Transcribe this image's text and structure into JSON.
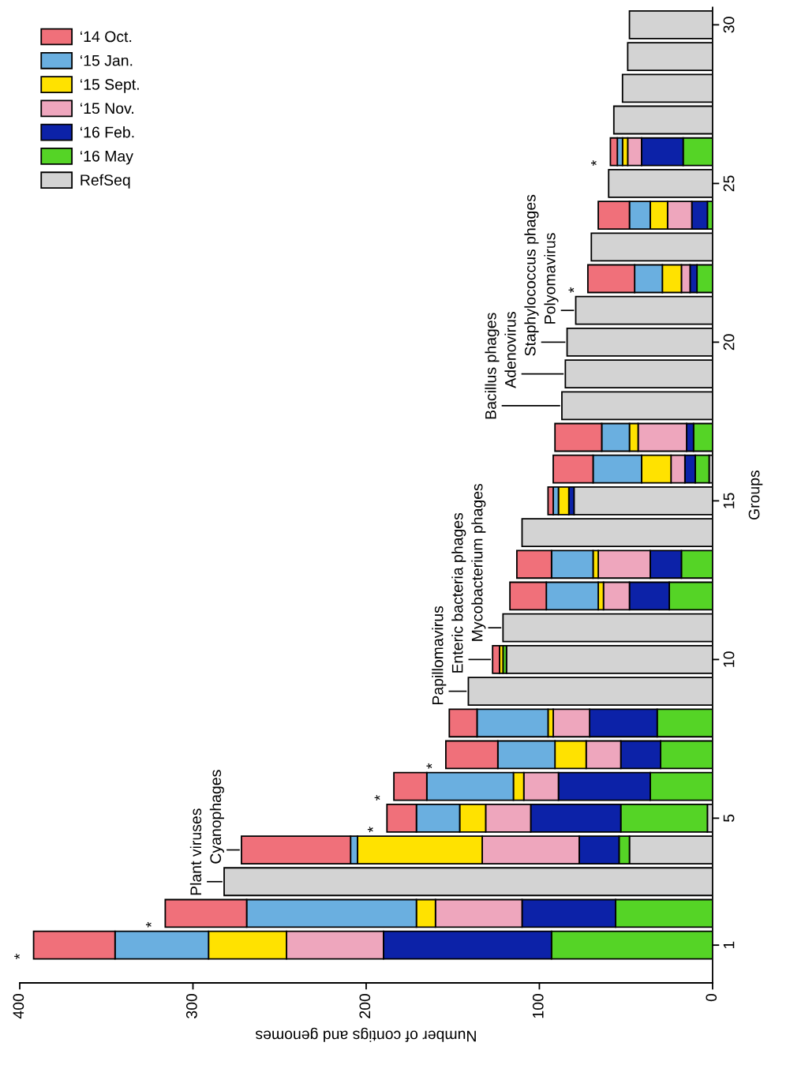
{
  "chart_data": {
    "type": "bar",
    "orientation": "horizontal",
    "stacked": true,
    "xlabel": "Number of contigs and genomes",
    "ylabel": "Groups",
    "categories": [
      "30",
      null,
      null,
      null,
      null,
      "25",
      null,
      null,
      null,
      null,
      "20",
      null,
      null,
      null,
      null,
      "15",
      null,
      null,
      null,
      null,
      "10",
      null,
      null,
      null,
      null,
      "5",
      null,
      null,
      null,
      "1"
    ],
    "series": [
      {
        "name": "RefSeq",
        "color": "#d3d3d3",
        "values": [
          48,
          49,
          52,
          57,
          null,
          60,
          null,
          70,
          null,
          79,
          84,
          85,
          87,
          null,
          2,
          80,
          110,
          null,
          null,
          121,
          119,
          141,
          null,
          null,
          null,
          3,
          48,
          282,
          null,
          null
        ],
        "value_labels": [
          null,
          null,
          null,
          null,
          null,
          null,
          null,
          null,
          null,
          "Polyomavirus",
          "Staphylococcus phages",
          "Adenovirus",
          "Bacillus phages",
          null,
          null,
          null,
          null,
          null,
          null,
          "Mycobacterium phages",
          null,
          "Papillomavirus",
          null,
          null,
          null,
          null,
          null,
          "Plant viruses",
          null,
          null
        ]
      },
      {
        "name": "‘16 May",
        "color": "#55d426",
        "values": [
          null,
          null,
          null,
          null,
          17,
          null,
          3,
          null,
          9,
          null,
          null,
          null,
          null,
          11,
          8,
          null,
          null,
          18,
          25,
          null,
          2,
          null,
          32,
          30,
          36,
          50,
          6,
          null,
          56,
          93
        ]
      },
      {
        "name": "‘16 Feb.",
        "color": "#0c22a8",
        "values": [
          null,
          null,
          null,
          null,
          24,
          null,
          9,
          null,
          4,
          null,
          null,
          null,
          null,
          4,
          6,
          3,
          null,
          18,
          23,
          null,
          null,
          null,
          39,
          23,
          53,
          52,
          23,
          null,
          54,
          97
        ]
      },
      {
        "name": "‘15 Nov.",
        "color": "#eea6bd",
        "values": [
          null,
          null,
          null,
          null,
          8,
          null,
          14,
          null,
          5,
          null,
          null,
          null,
          null,
          28,
          8,
          null,
          null,
          30,
          15,
          null,
          null,
          null,
          21,
          20,
          20,
          26,
          56,
          null,
          50,
          56
        ]
      },
      {
        "name": "‘15 Sept.",
        "color": "#ffe200",
        "values": [
          null,
          null,
          null,
          null,
          3,
          null,
          10,
          null,
          11,
          null,
          null,
          null,
          null,
          5,
          17,
          6,
          null,
          3,
          3,
          null,
          2,
          null,
          3,
          18,
          6,
          15,
          72,
          null,
          11,
          45
        ]
      },
      {
        "name": "‘15 Jan.",
        "color": "#6aafe0",
        "values": [
          null,
          null,
          null,
          null,
          3,
          null,
          12,
          null,
          16,
          null,
          null,
          null,
          null,
          16,
          28,
          3,
          null,
          24,
          30,
          null,
          null,
          null,
          41,
          33,
          50,
          25,
          4,
          null,
          98,
          54
        ]
      },
      {
        "name": "‘14 Oct.",
        "color": "#f0707a",
        "values": [
          null,
          null,
          null,
          null,
          4,
          null,
          18,
          null,
          27,
          null,
          null,
          null,
          null,
          27,
          23,
          3,
          null,
          20,
          21,
          null,
          4,
          null,
          16,
          30,
          19,
          17,
          63,
          null,
          47,
          47
        ],
        "value_labels": [
          null,
          null,
          null,
          null,
          "*",
          null,
          null,
          null,
          "*",
          null,
          null,
          null,
          null,
          null,
          null,
          null,
          null,
          null,
          null,
          null,
          "Enteric bacteria phages",
          null,
          null,
          "*",
          "*",
          "*",
          "Cyanophages",
          null,
          "*",
          "*"
        ]
      }
    ],
    "xlim": [
      400,
      0
    ],
    "xticks": [
      0,
      100,
      200,
      300,
      400
    ],
    "grid": false,
    "legend": "top left"
  }
}
